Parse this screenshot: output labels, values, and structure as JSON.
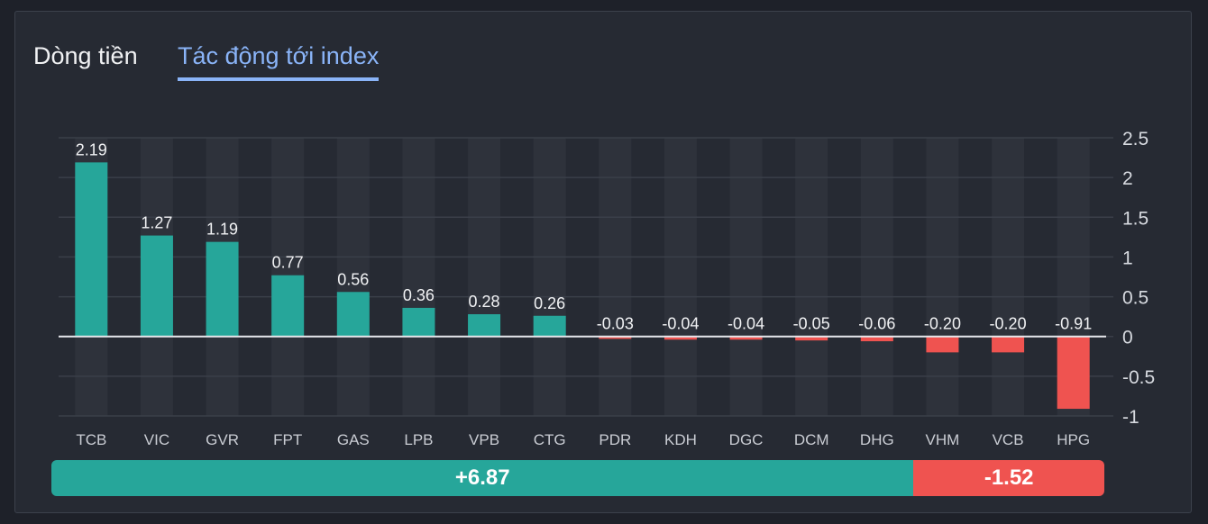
{
  "tabs": {
    "flow_label": "Dòng tiền",
    "impact_label": "Tác động tới index",
    "active": "impact"
  },
  "colors": {
    "positive": "#26a69a",
    "negative": "#ef5350",
    "accent": "#8ab4f8"
  },
  "chart_data": {
    "type": "bar",
    "title": "",
    "xlabel": "",
    "ylabel": "",
    "categories": [
      "TCB",
      "VIC",
      "GVR",
      "FPT",
      "GAS",
      "LPB",
      "VPB",
      "CTG",
      "PDR",
      "KDH",
      "DGC",
      "DCM",
      "DHG",
      "VHM",
      "VCB",
      "HPG"
    ],
    "values": [
      2.19,
      1.27,
      1.19,
      0.77,
      0.56,
      0.36,
      0.28,
      0.26,
      -0.03,
      -0.04,
      -0.04,
      -0.05,
      -0.06,
      -0.2,
      -0.2,
      -0.91
    ],
    "value_labels": [
      "2.19",
      "1.27",
      "1.19",
      "0.77",
      "0.56",
      "0.36",
      "0.28",
      "0.26",
      "-0.03",
      "-0.04",
      "-0.04",
      "-0.05",
      "-0.06",
      "-0.20",
      "-0.20",
      "-0.91"
    ],
    "ylim": [
      -1,
      2.5
    ],
    "yticks": [
      "2.5",
      "2",
      "1.5",
      "1",
      "0.5",
      "0",
      "-0.5",
      "-1"
    ],
    "ytick_values": [
      2.5,
      2,
      1.5,
      1,
      0.5,
      0,
      -0.5,
      -1
    ],
    "y_axis_side": "right",
    "grid": true
  },
  "summary": {
    "positive_total": 6.87,
    "negative_total": -1.52,
    "positive_label": "+6.87",
    "negative_label": "-1.52"
  }
}
